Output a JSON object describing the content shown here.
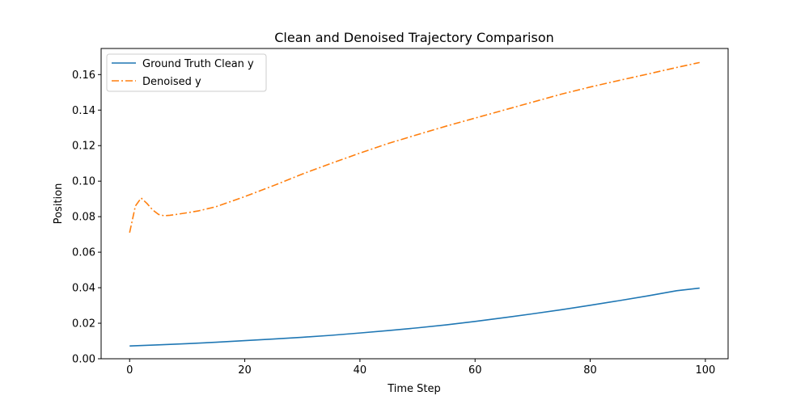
{
  "chart_data": {
    "type": "line",
    "title": "Clean and Denoised Trajectory Comparison",
    "xlabel": "Time Step",
    "ylabel": "Position",
    "xlim": [
      -4.95,
      103.95
    ],
    "ylim": [
      0.0,
      0.1747
    ],
    "xticks": [
      0,
      20,
      40,
      60,
      80,
      100
    ],
    "xtick_labels": [
      "0",
      "20",
      "40",
      "60",
      "80",
      "100"
    ],
    "yticks": [
      0.0,
      0.02,
      0.04,
      0.06,
      0.08,
      0.1,
      0.12,
      0.14,
      0.16
    ],
    "ytick_labels": [
      "0.00",
      "0.02",
      "0.04",
      "0.06",
      "0.08",
      "0.10",
      "0.12",
      "0.14",
      "0.16"
    ],
    "grid": false,
    "legend_position": "upper-left",
    "series": [
      {
        "name": "Ground Truth Clean y",
        "color": "#1f77b4",
        "style": "solid",
        "x": [
          0,
          5,
          10,
          15,
          20,
          25,
          30,
          35,
          40,
          45,
          50,
          55,
          60,
          65,
          70,
          75,
          80,
          85,
          90,
          95,
          99
        ],
        "y": [
          0.0072,
          0.0078,
          0.0085,
          0.0093,
          0.0102,
          0.0111,
          0.0121,
          0.0132,
          0.0145,
          0.0159,
          0.0174,
          0.0191,
          0.021,
          0.0231,
          0.0253,
          0.0276,
          0.0301,
          0.0327,
          0.0354,
          0.0383,
          0.0398
        ]
      },
      {
        "name": "Denoised y",
        "color": "#ff7f0e",
        "style": "dashdot",
        "x": [
          0,
          1,
          2,
          3,
          4,
          5,
          6,
          7,
          8,
          10,
          12,
          15,
          20,
          25,
          30,
          35,
          40,
          45,
          50,
          55,
          60,
          65,
          70,
          75,
          80,
          85,
          90,
          95,
          99
        ],
        "y": [
          0.071,
          0.086,
          0.0905,
          0.0875,
          0.0838,
          0.0813,
          0.0805,
          0.0808,
          0.0812,
          0.0822,
          0.0833,
          0.0856,
          0.0913,
          0.0975,
          0.104,
          0.11,
          0.1158,
          0.1213,
          0.1262,
          0.131,
          0.1355,
          0.14,
          0.1445,
          0.149,
          0.153,
          0.1567,
          0.1603,
          0.164,
          0.1668
        ]
      }
    ]
  }
}
